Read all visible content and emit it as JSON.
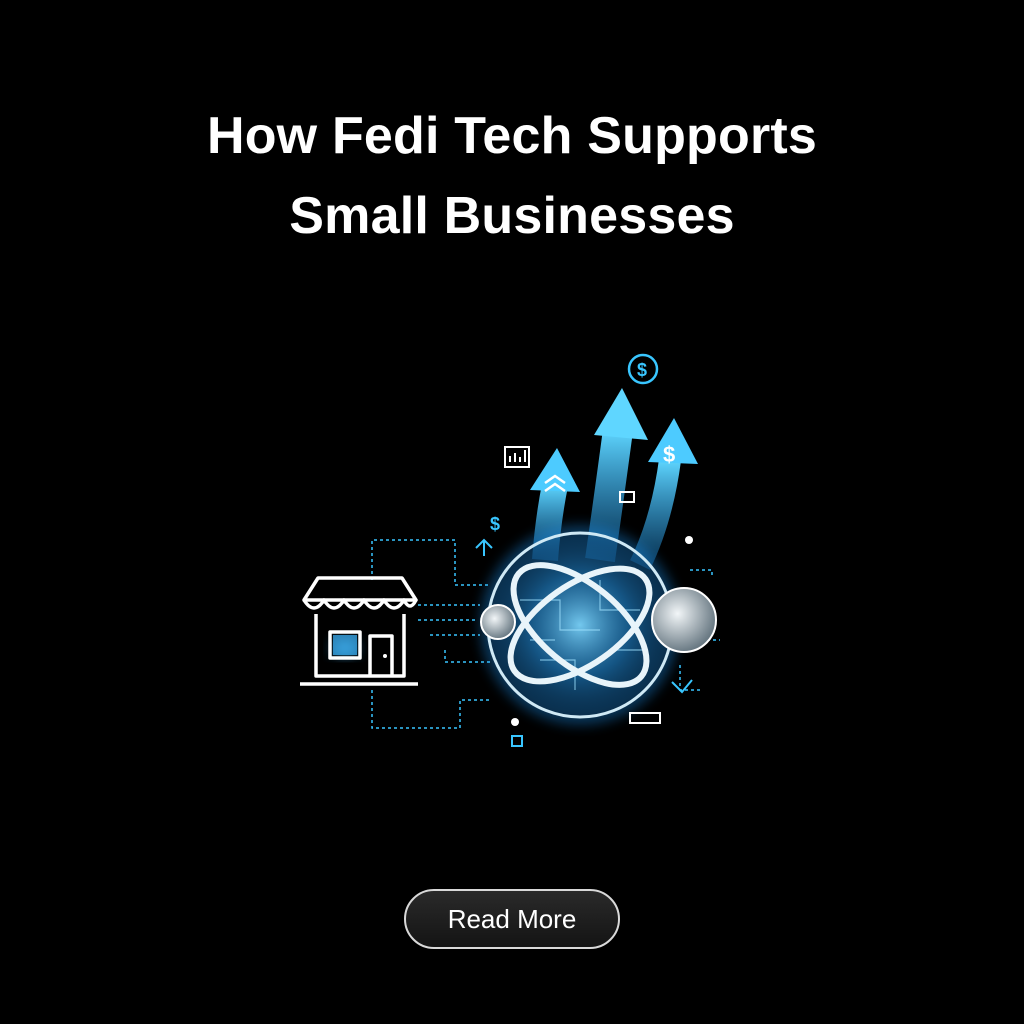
{
  "header": {
    "title_line1": "How Fedi Tech Supports",
    "title_line2": "Small Businesses"
  },
  "illustration": {
    "icons": [
      "storefront-icon",
      "globe-icon",
      "growth-arrows-icon",
      "dollar-coin-icon",
      "bar-chart-icon",
      "sphere-node-icon"
    ],
    "dollar_sign": "$",
    "colors": {
      "accent": "#39c6ff",
      "glow": "#1e9bff",
      "line": "#ffffff"
    }
  },
  "cta": {
    "label": "Read More"
  }
}
